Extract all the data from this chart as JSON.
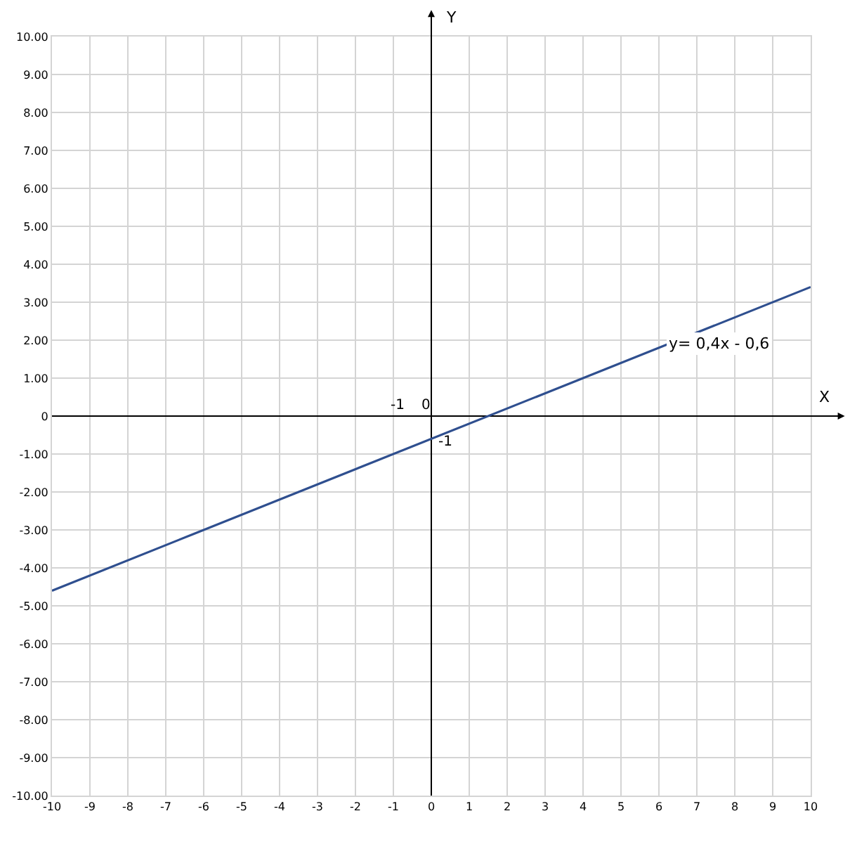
{
  "chart_data": {
    "type": "line",
    "xlabel": "X",
    "ylabel": "Y",
    "x": [
      -10,
      10
    ],
    "series": [
      {
        "color": "#2f4f8f",
        "values": [
          -4.6,
          3.4
        ]
      }
    ],
    "xlim": [
      -10,
      10
    ],
    "xticks": [
      -10,
      -9,
      -8,
      -7,
      -6,
      -5,
      -4,
      -3,
      -2,
      -1,
      0,
      1,
      2,
      3,
      4,
      5,
      6,
      7,
      8,
      9,
      10
    ],
    "ylim": [
      -10,
      10
    ],
    "yticks": [
      {
        "value": 10,
        "label": "10.00"
      },
      {
        "value": 9,
        "label": "9.00"
      },
      {
        "value": 8,
        "label": "8.00"
      },
      {
        "value": 7,
        "label": "7.00"
      },
      {
        "value": 6,
        "label": "6.00"
      },
      {
        "value": 5,
        "label": "5.00"
      },
      {
        "value": 4,
        "label": "4.00"
      },
      {
        "value": 3,
        "label": "3.00"
      },
      {
        "value": 2,
        "label": "2.00"
      },
      {
        "value": 1,
        "label": "1.00"
      },
      0,
      {
        "value": -1,
        "label": "-1.00"
      },
      {
        "value": -2,
        "label": "-2.00"
      },
      {
        "value": -3,
        "label": "-3.00"
      },
      {
        "value": -4,
        "label": "-4.00"
      },
      {
        "value": -5,
        "label": "-5.00"
      },
      {
        "value": -6,
        "label": "-6.00"
      },
      {
        "value": -7,
        "label": "-7.00"
      },
      {
        "value": -8,
        "label": "-8.00"
      },
      {
        "value": -9,
        "label": "-9.00"
      },
      {
        "value": -10,
        "label": "-10.00"
      }
    ],
    "annotations": [
      "y= 0,4x - 0,6",
      "-1",
      "0",
      "-1"
    ],
    "grid": true,
    "marker": "none",
    "line_style": "solid"
  }
}
